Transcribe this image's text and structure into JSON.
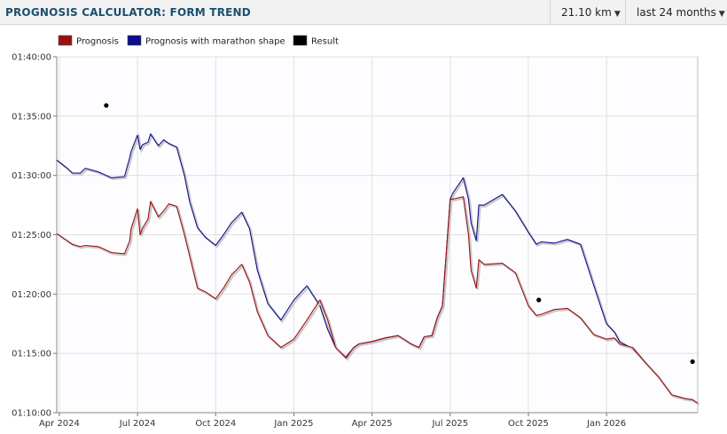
{
  "header": {
    "title": "PROGNOSIS CALCULATOR: FORM TREND",
    "distance_label": "21.10 km",
    "range_label": "last 24 months"
  },
  "colors": {
    "prognosis": "#9b0f0f",
    "marathon": "#0d0d8a",
    "result": "#000000"
  },
  "chart_data": {
    "type": "line",
    "title": "",
    "xlabel": "",
    "ylabel": "",
    "y_tick_labels": [
      "01:10:00",
      "01:15:00",
      "01:20:00",
      "01:25:00",
      "01:30:00",
      "01:35:00",
      "01:40:00"
    ],
    "y_ticks_min": [
      70,
      75,
      80,
      85,
      90,
      95,
      100
    ],
    "ylim_min": [
      70,
      100
    ],
    "x_tick_labels": [
      "Apr 2024",
      "Jul 2024",
      "Oct 2024",
      "Jan 2025",
      "Apr 2025",
      "Jul 2025",
      "Oct 2025",
      "Jan 2026"
    ],
    "x_ticks_month": [
      0,
      3,
      6,
      9,
      12,
      15,
      18,
      21
    ],
    "xlim_month": [
      -0.1,
      24.5
    ],
    "x_origin": "2024-04",
    "legend": {
      "position": "top-left",
      "entries": [
        "Prognosis",
        "Prognosis with marathon shape",
        "Result"
      ]
    },
    "series": [
      {
        "name": "Prognosis",
        "x": [
          -0.1,
          0.3,
          0.5,
          0.8,
          1.0,
          1.5,
          2.0,
          2.5,
          2.7,
          2.75,
          3.0,
          3.1,
          3.2,
          3.4,
          3.5,
          3.8,
          4.0,
          4.2,
          4.5,
          4.8,
          5.0,
          5.3,
          5.6,
          6.0,
          6.3,
          6.6,
          7.0,
          7.3,
          7.6,
          8.0,
          8.5,
          9.0,
          9.5,
          10.0,
          10.3,
          10.6,
          11.0,
          11.3,
          11.5,
          12.0,
          12.5,
          13.0,
          13.5,
          13.8,
          14.0,
          14.3,
          14.5,
          14.7,
          15.0,
          15.1,
          15.5,
          15.7,
          15.8,
          16.0,
          16.1,
          16.3,
          17.0,
          17.5,
          18.0,
          18.3,
          18.5,
          19.0,
          19.5,
          20.0,
          20.5,
          21.0,
          21.3,
          21.5,
          22.0,
          22.5,
          23.0,
          23.5,
          24.0,
          24.3,
          24.5
        ],
        "y": [
          85.1,
          84.5,
          84.2,
          84.0,
          84.1,
          84.0,
          83.5,
          83.4,
          84.5,
          85.5,
          87.2,
          85.0,
          85.6,
          86.3,
          87.8,
          86.5,
          87.0,
          87.6,
          87.4,
          85.0,
          83.2,
          80.5,
          80.2,
          79.6,
          80.5,
          81.6,
          82.5,
          81.0,
          78.5,
          76.5,
          75.5,
          76.2,
          77.8,
          79.5,
          77.8,
          75.5,
          74.6,
          75.5,
          75.8,
          76.0,
          76.3,
          76.5,
          75.8,
          75.5,
          76.4,
          76.5,
          78.0,
          79.0,
          88.0,
          88.0,
          88.2,
          85.0,
          82.0,
          80.5,
          82.9,
          82.5,
          82.6,
          81.8,
          79.0,
          78.2,
          78.3,
          78.7,
          78.8,
          78.0,
          76.6,
          76.2,
          76.3,
          75.8,
          75.5,
          74.2,
          73.0,
          71.5,
          71.2,
          71.1,
          70.8
        ]
      },
      {
        "name": "Prognosis with marathon shape",
        "x": [
          -0.1,
          0.3,
          0.5,
          0.8,
          1.0,
          1.5,
          2.0,
          2.5,
          2.7,
          2.75,
          3.0,
          3.1,
          3.2,
          3.4,
          3.5,
          3.8,
          4.0,
          4.2,
          4.5,
          4.8,
          5.0,
          5.3,
          5.6,
          6.0,
          6.3,
          6.6,
          7.0,
          7.3,
          7.6,
          8.0,
          8.5,
          9.0,
          9.5,
          10.0,
          10.3,
          10.6,
          11.0,
          11.3,
          11.5,
          12.0,
          12.5,
          13.0,
          13.5,
          13.8,
          14.0,
          14.3,
          14.5,
          14.7,
          15.0,
          15.1,
          15.5,
          15.7,
          15.8,
          16.0,
          16.1,
          16.3,
          17.0,
          17.5,
          18.0,
          18.3,
          18.5,
          19.0,
          19.5,
          20.0,
          20.5,
          21.0,
          21.3,
          21.5,
          22.0,
          22.5,
          23.0,
          23.5,
          24.0,
          24.3,
          24.5
        ],
        "y": [
          91.3,
          90.6,
          90.2,
          90.2,
          90.6,
          90.3,
          89.8,
          89.9,
          91.5,
          92.0,
          93.4,
          92.2,
          92.6,
          92.8,
          93.5,
          92.5,
          93.0,
          92.7,
          92.4,
          90.0,
          87.8,
          85.6,
          84.8,
          84.1,
          85.0,
          86.0,
          86.9,
          85.5,
          82.0,
          79.2,
          77.8,
          79.5,
          80.7,
          79.0,
          77.0,
          75.5,
          74.7,
          75.5,
          75.8,
          76.0,
          76.3,
          76.5,
          75.8,
          75.5,
          76.4,
          76.5,
          78.0,
          79.0,
          88.0,
          88.5,
          89.8,
          88.0,
          86.0,
          84.5,
          87.5,
          87.5,
          88.4,
          87.0,
          85.2,
          84.2,
          84.4,
          84.3,
          84.6,
          84.2,
          80.8,
          77.5,
          76.8,
          76.0,
          75.4,
          74.2,
          73.0,
          71.5,
          71.2,
          71.1,
          70.8
        ]
      },
      {
        "name": "Result",
        "type": "scatter",
        "x": [
          1.8,
          18.4,
          24.3
        ],
        "y": [
          95.9,
          79.5,
          74.3
        ]
      }
    ]
  }
}
